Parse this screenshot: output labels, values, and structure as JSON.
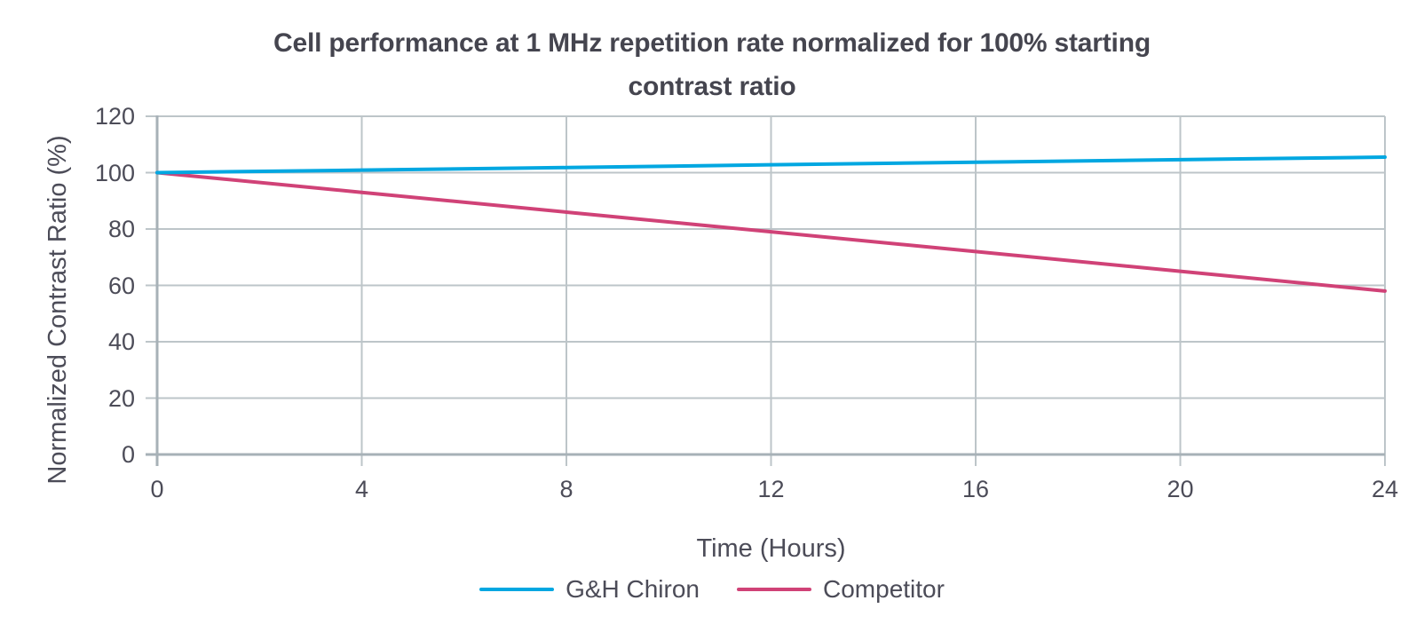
{
  "header": {
    "title_line1": "Cell performance at 1 MHz repetition rate normalized for 100% starting",
    "title_line2": "contrast ratio"
  },
  "colors": {
    "title_text": "#45454f",
    "axis_text": "#4c4c58",
    "gridline": "#bdc5c9",
    "axis_line": "#a7b1b7",
    "gh_chiron_blue": "#00a7e1",
    "competitor_pink": "#d04277",
    "background": "#ffffff"
  },
  "chart_data": {
    "type": "line",
    "title": "Cell performance at 1 MHz repetition rate normalized for 100% starting contrast ratio",
    "xlabel": "Time (Hours)",
    "ylabel": "Normalized Contrast Ratio (%)",
    "x": [
      0,
      4,
      8,
      12,
      16,
      20,
      24
    ],
    "x_ticks": [
      0,
      4,
      8,
      12,
      16,
      20,
      24
    ],
    "y_ticks": [
      0,
      20,
      40,
      60,
      80,
      100,
      120
    ],
    "xlim": [
      0,
      24
    ],
    "ylim": [
      0,
      120
    ],
    "grid": true,
    "legend_position": "bottom",
    "series": [
      {
        "name": "G&H Chiron",
        "color": "#00a7e1",
        "values": [
          100,
          100.9,
          101.8,
          102.8,
          103.7,
          104.6,
          105.5
        ]
      },
      {
        "name": "Competitor",
        "color": "#d04277",
        "values": [
          100,
          93,
          86,
          79,
          72,
          65,
          58
        ]
      }
    ]
  }
}
